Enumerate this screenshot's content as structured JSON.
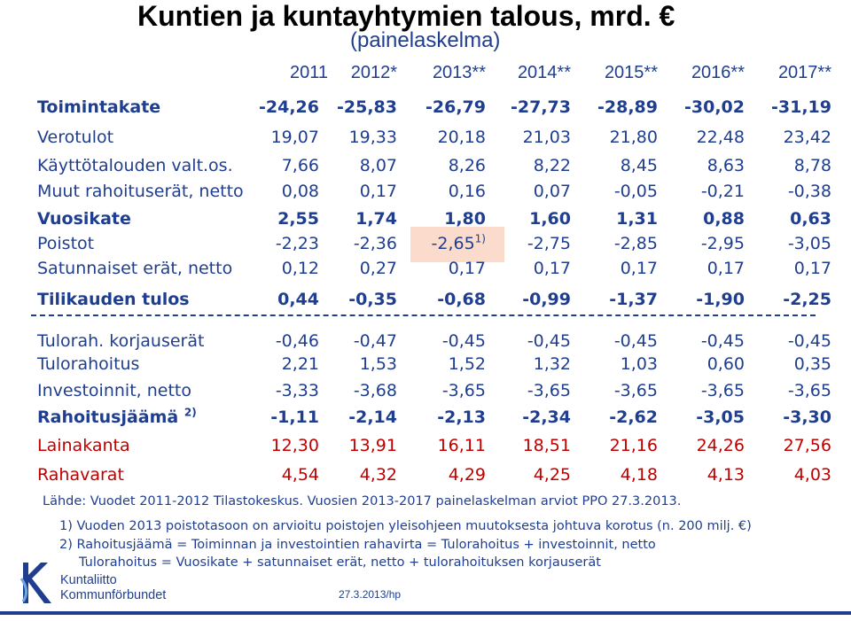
{
  "title": "Kuntien ja kuntayhtymien talous, mrd. €",
  "subtitle": "(painelaskelma)",
  "years": [
    "2011",
    "2012*",
    "2013**",
    "2014**",
    "2015**",
    "2016**",
    "2017**"
  ],
  "rows": [
    {
      "label": "Toimintakate",
      "values": [
        "-24,26",
        "-25,83",
        "-26,79",
        "-27,73",
        "-28,89",
        "-30,02",
        "-31,19"
      ]
    },
    {
      "label": "Verotulot",
      "values": [
        "19,07",
        "19,33",
        "20,18",
        "21,03",
        "21,80",
        "22,48",
        "23,42"
      ]
    },
    {
      "label": "Käyttötalouden valt.os.",
      "values": [
        "7,66",
        "8,07",
        "8,26",
        "8,22",
        "8,45",
        "8,63",
        "8,78"
      ]
    },
    {
      "label": "Muut rahoituserät, netto",
      "values": [
        "0,08",
        "0,17",
        "0,16",
        "0,07",
        "-0,05",
        "-0,21",
        "-0,38"
      ]
    },
    {
      "label": "Vuosikate",
      "values": [
        "2,55",
        "1,74",
        "1,80",
        "1,60",
        "1,31",
        "0,88",
        "0,63"
      ]
    },
    {
      "label": "Poistot",
      "values": [
        "-2,23",
        "-2,36",
        "-2,65",
        "-2,75",
        "-2,85",
        "-2,95",
        "-3,05"
      ],
      "note_sup": "1)"
    },
    {
      "label": "Satunnaiset erät, netto",
      "values": [
        "0,12",
        "0,27",
        "0,17",
        "0,17",
        "0,17",
        "0,17",
        "0,17"
      ]
    },
    {
      "label": "Tilikauden tulos",
      "values": [
        "0,44",
        "-0,35",
        "-0,68",
        "-0,99",
        "-1,37",
        "-1,90",
        "-2,25"
      ]
    },
    {
      "label": "Tulorah. korjauserät",
      "values": [
        "-0,46",
        "-0,47",
        "-0,45",
        "-0,45",
        "-0,45",
        "-0,45",
        "-0,45"
      ]
    },
    {
      "label": "Tulorahoitus",
      "values": [
        "2,21",
        "1,53",
        "1,52",
        "1,32",
        "1,03",
        "0,60",
        "0,35"
      ]
    },
    {
      "label": "Investoinnit, netto",
      "values": [
        "-3,33",
        "-3,68",
        "-3,65",
        "-3,65",
        "-3,65",
        "-3,65",
        "-3,65"
      ]
    },
    {
      "label": "Rahoitusjäämä",
      "label_sup": "2)",
      "values": [
        "-1,11",
        "-2,14",
        "-2,13",
        "-2,34",
        "-2,62",
        "-3,05",
        "-3,30"
      ]
    },
    {
      "label": "Lainakanta",
      "values": [
        "12,30",
        "13,91",
        "16,11",
        "18,51",
        "21,16",
        "24,26",
        "27,56"
      ]
    },
    {
      "label": "Rahavarat",
      "values": [
        "4,54",
        "4,32",
        "4,29",
        "4,25",
        "4,18",
        "4,13",
        "4,03"
      ]
    }
  ],
  "source": "Lähde: Vuodet 2011-2012 Tilastokeskus. Vuosien 2013-2017 painelaskelman arviot PPO 27.3.2013.",
  "notes": [
    "1) Vuoden 2013 poistotasoon on arvioitu poistojen yleisohjeen muutoksesta johtuva korotus (n. 200 milj. €)",
    "2) Rahoitusjäämä = Toiminnan ja investointien rahavirta = Tulorahoitus + investoinnit, netto",
    "Tulorahoitus = Vuosikate + satunnaiset erät, netto + tulorahoituksen korjauserät"
  ],
  "logo": {
    "line1": "Kuntaliitto",
    "line2": "Kommunförbundet"
  },
  "footer": "27.3.2013/hp",
  "colors": {
    "text": "#1f3e8f",
    "red": "#c00000",
    "highlight": "#fbdccc"
  }
}
